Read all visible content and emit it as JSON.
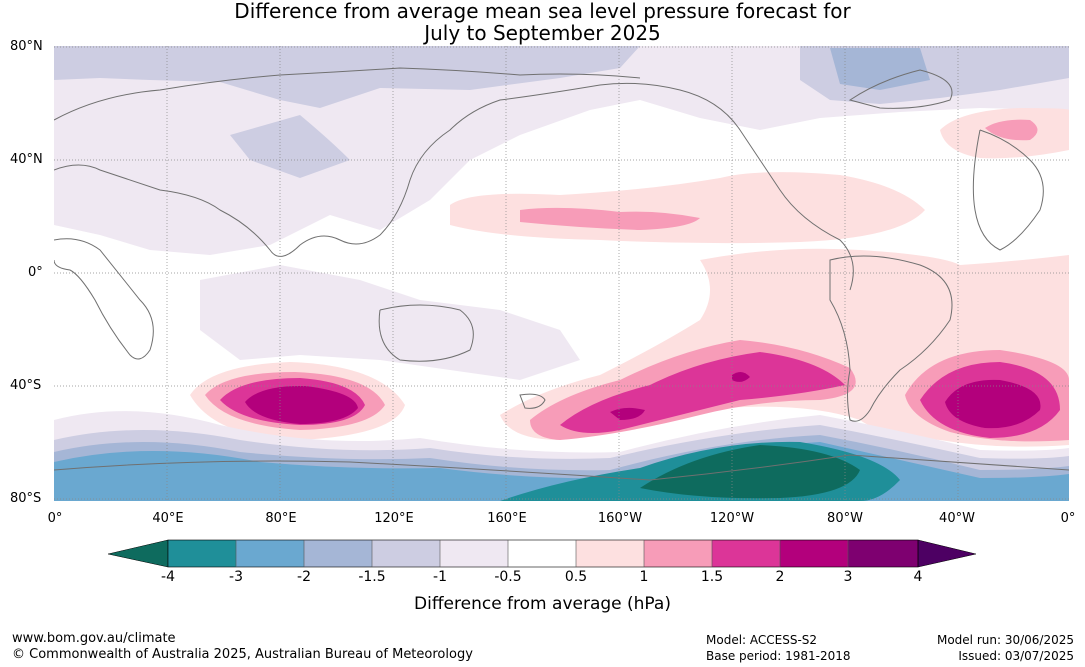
{
  "title_line1": "Difference from average mean sea level pressure forecast for",
  "title_line2": "July to September 2025",
  "lat_labels": [
    "80°N",
    "40°N",
    "0°",
    "40°S",
    "80°S"
  ],
  "lon_labels": [
    "0°",
    "40°E",
    "80°E",
    "120°E",
    "160°E",
    "160°W",
    "120°W",
    "80°W",
    "40°W",
    "0°"
  ],
  "colorbar": {
    "ticks": [
      "-4",
      "-3",
      "-2",
      "-1.5",
      "-1",
      "-0.5",
      "0.5",
      "1",
      "1.5",
      "2",
      "3",
      "4"
    ],
    "colors": [
      "#0e6b5e",
      "#1f8f99",
      "#6aa8d0",
      "#a5b6d6",
      "#cdcde2",
      "#efe8f2",
      "#ffffff",
      "#fde0e0",
      "#f79cb8",
      "#dc3598",
      "#b3007c",
      "#7e0070",
      "#4d0063"
    ],
    "label": "Difference from average (hPa)"
  },
  "footer": {
    "url": "www.bom.gov.au/climate",
    "copyright": "© Commonwealth of Australia 2025, Australian Bureau of Meteorology",
    "model": "Model: ACCESS-S2",
    "base_period": "Base period: 1981-2018",
    "model_run": "Model run: 30/06/2025",
    "issued": "Issued: 03/07/2025"
  }
}
